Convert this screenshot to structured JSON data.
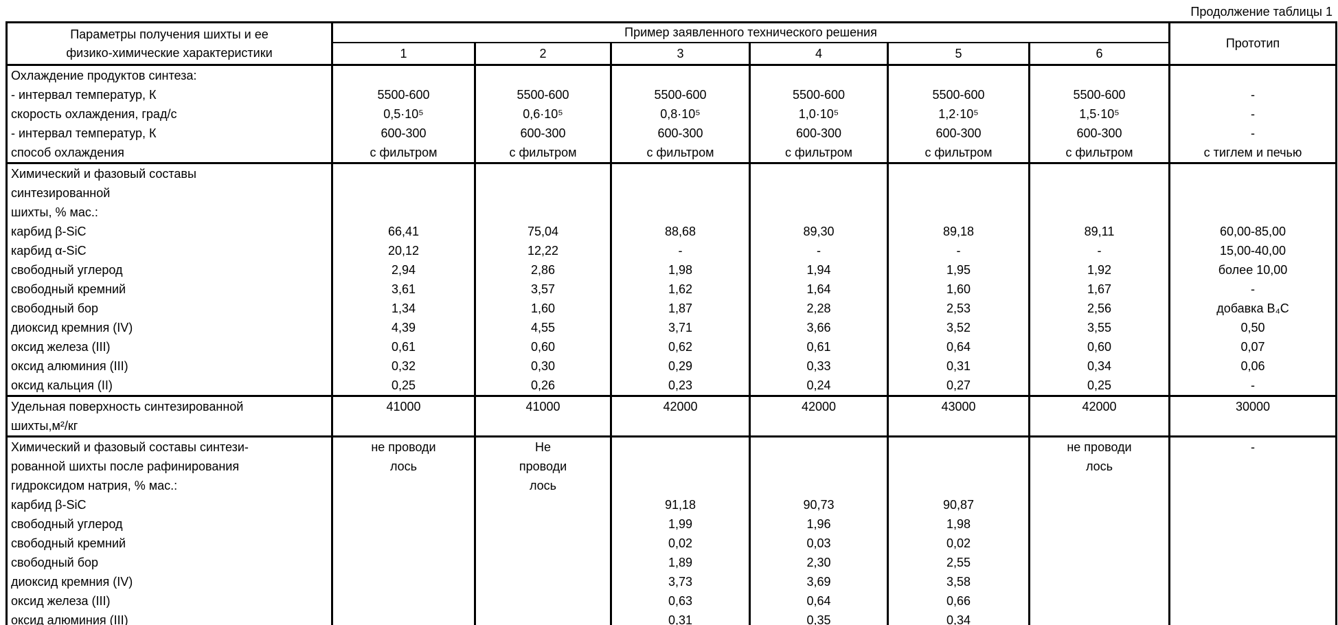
{
  "page": {
    "continuation_label": "Продолжение таблицы 1"
  },
  "table": {
    "param_header_line1": "Параметры получения шихты и ее",
    "param_header_line2": "физико-химические характеристики",
    "examples_header": "Пример заявленного технического решения",
    "prototype_header": "Прототип",
    "example_columns": [
      "1",
      "2",
      "3",
      "4",
      "5",
      "6"
    ],
    "blocks": [
      {
        "rows": [
          {
            "label": "Охлаждение продуктов синтеза:",
            "cells": [
              "",
              "",
              "",
              "",
              "",
              "",
              ""
            ]
          },
          {
            "label": "- интервал температур, К",
            "cells": [
              "5500-600",
              "5500-600",
              "5500-600",
              "5500-600",
              "5500-600",
              "5500-600",
              "-"
            ]
          },
          {
            "label": "скорость охлаждения, град/с",
            "cells": [
              "0,5·10⁵",
              "0,6·10⁵",
              "0,8·10⁵",
              "1,0·10⁵",
              "1,2·10⁵",
              "1,5·10⁵",
              "-"
            ]
          },
          {
            "label": "- интервал температур, К",
            "cells": [
              "600-300",
              "600-300",
              "600-300",
              "600-300",
              "600-300",
              "600-300",
              "-"
            ]
          },
          {
            "label": "способ охлаждения",
            "cells": [
              "с фильтром",
              "с фильтром",
              "с фильтром",
              "с фильтром",
              "с фильтром",
              "с фильтром",
              "с тиглем и печью"
            ]
          }
        ]
      },
      {
        "rows": [
          {
            "label": "Химический и фазовый составы",
            "cells": [
              "",
              "",
              "",
              "",
              "",
              "",
              ""
            ]
          },
          {
            "label": "синтезированной",
            "cells": [
              "",
              "",
              "",
              "",
              "",
              "",
              ""
            ]
          },
          {
            "label": "шихты, % мас.:",
            "cells": [
              "",
              "",
              "",
              "",
              "",
              "",
              ""
            ]
          },
          {
            "label": "карбид β-SiC",
            "cells": [
              "66,41",
              "75,04",
              "88,68",
              "89,30",
              "89,18",
              "89,11",
              "60,00-85,00"
            ]
          },
          {
            "label": "карбид α-SiC",
            "cells": [
              "20,12",
              "12,22",
              "-",
              "-",
              "-",
              "-",
              "15,00-40,00"
            ]
          },
          {
            "label": "свободный углерод",
            "cells": [
              "2,94",
              "2,86",
              "1,98",
              "1,94",
              "1,95",
              "1,92",
              "более 10,00"
            ]
          },
          {
            "label": "свободный кремний",
            "cells": [
              "3,61",
              "3,57",
              "1,62",
              "1,64",
              "1,60",
              "1,67",
              "-"
            ]
          },
          {
            "label": "свободный бор",
            "cells": [
              "1,34",
              "1,60",
              "1,87",
              "2,28",
              "2,53",
              "2,56",
              "добавка B₄C"
            ]
          },
          {
            "label": "диоксид кремния (IV)",
            "cells": [
              "4,39",
              "4,55",
              "3,71",
              "3,66",
              "3,52",
              "3,55",
              "0,50"
            ]
          },
          {
            "label": "оксид железа (III)",
            "cells": [
              "0,61",
              "0,60",
              "0,62",
              "0,61",
              "0,64",
              "0,60",
              "0,07"
            ]
          },
          {
            "label": "оксид алюминия (III)",
            "cells": [
              "0,32",
              "0,30",
              "0,29",
              "0,33",
              "0,31",
              "0,34",
              "0,06"
            ]
          },
          {
            "label": "оксид кальция (II)",
            "cells": [
              "0,25",
              "0,26",
              "0,23",
              "0,24",
              "0,27",
              "0,25",
              "-"
            ]
          }
        ]
      },
      {
        "rows": [
          {
            "label": "Удельная поверхность синтезированной",
            "cells": [
              "41000",
              "41000",
              "42000",
              "42000",
              "43000",
              "42000",
              "30000"
            ]
          },
          {
            "label": "шихты,м²/кг",
            "cells": [
              "",
              "",
              "",
              "",
              "",
              "",
              ""
            ]
          }
        ]
      },
      {
        "rows": [
          {
            "label": "Химический и фазовый составы синтези-",
            "cells": [
              "не проводи",
              "Не",
              "",
              "",
              "",
              "не проводи",
              "-"
            ]
          },
          {
            "label": "рованной шихты после рафинирования",
            "cells": [
              "лось",
              "проводи",
              "",
              "",
              "",
              "лось",
              ""
            ]
          },
          {
            "label": "гидроксидом натрия, % мас.:",
            "cells": [
              "",
              "лось",
              "",
              "",
              "",
              "",
              ""
            ]
          },
          {
            "label": "карбид β-SiC",
            "cells": [
              "",
              "",
              "91,18",
              "90,73",
              "90,87",
              "",
              ""
            ]
          },
          {
            "label": "свободный углерод",
            "cells": [
              "",
              "",
              "1,99",
              "1,96",
              "1,98",
              "",
              ""
            ]
          },
          {
            "label": "свободный кремний",
            "cells": [
              "",
              "",
              "0,02",
              "0,03",
              "0,02",
              "",
              ""
            ]
          },
          {
            "label": "свободный бор",
            "cells": [
              "",
              "",
              "1,89",
              "2,30",
              "2,55",
              "",
              ""
            ]
          },
          {
            "label": "диоксид кремния (IV)",
            "cells": [
              "",
              "",
              "3,73",
              "3,69",
              "3,58",
              "",
              ""
            ]
          },
          {
            "label": "оксид железа (III)",
            "cells": [
              "",
              "",
              "0,63",
              "0,64",
              "0,66",
              "",
              ""
            ]
          },
          {
            "label": "оксид алюминия (III)",
            "cells": [
              "",
              "",
              "0,31",
              "0,35",
              "0,34",
              "",
              ""
            ]
          }
        ]
      }
    ]
  }
}
